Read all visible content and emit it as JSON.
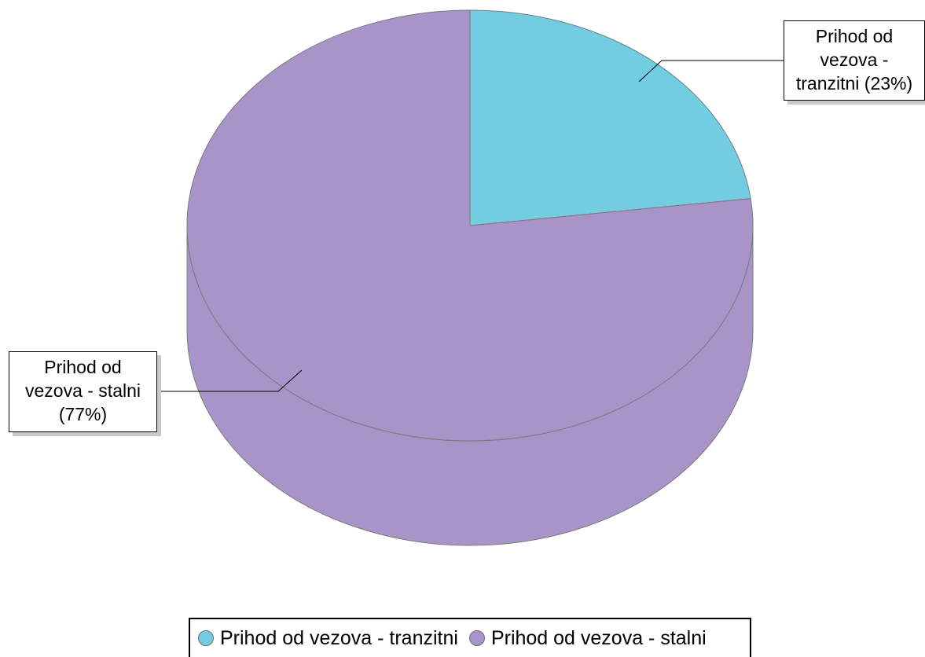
{
  "chart_data": {
    "type": "pie",
    "style": "3d",
    "categories": [
      "Prihod od vezova - tranzitni",
      "Prihod od vezova - stalni"
    ],
    "values": [
      23,
      77
    ],
    "unit": "%",
    "data_labels": [
      "Prihod od vezova - tranzitni (23%)",
      "Prihod od vezova - stalni (77%)"
    ],
    "colors": [
      "#72CDE0",
      "#A994C9"
    ],
    "legend_position": "bottom"
  },
  "labels": {
    "tranzitni": [
      "Prihod od",
      "vezova -",
      "tranzitni (23%)"
    ],
    "stalni": [
      "Prihod od",
      "vezova - stalni",
      "(77%)"
    ]
  },
  "legend": {
    "items": [
      {
        "label": "Prihod od vezova - tranzitni",
        "color": "#72CDE0"
      },
      {
        "label": "Prihod od vezova - stalni",
        "color": "#A994C9"
      }
    ]
  }
}
